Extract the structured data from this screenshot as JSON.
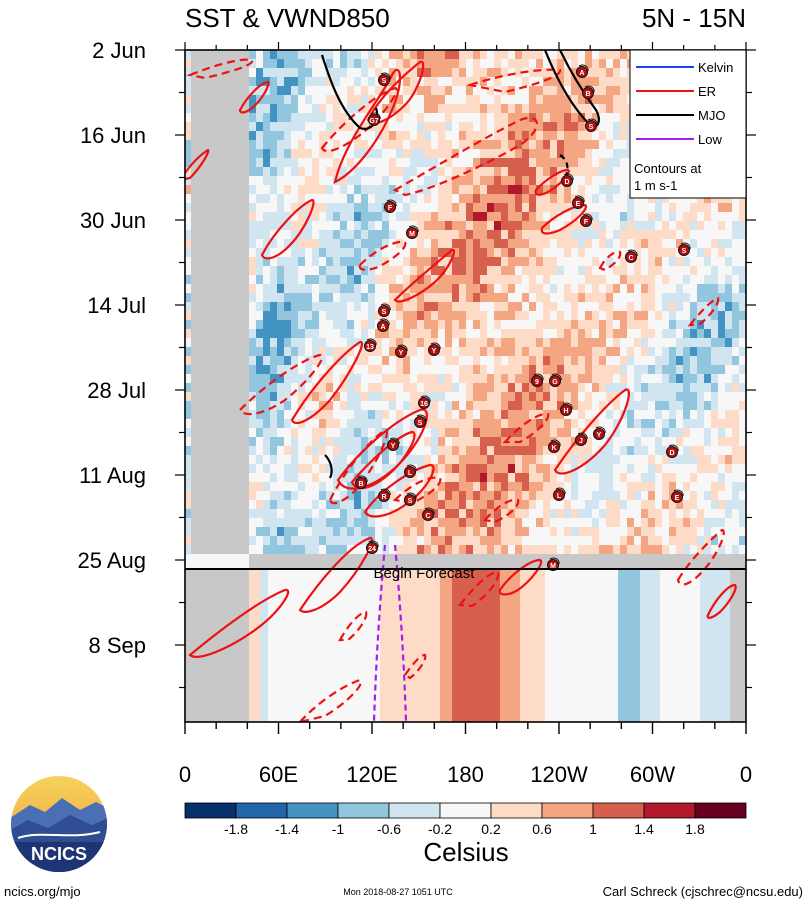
{
  "chart_data": {
    "type": "heatmap",
    "title_left": "SST & VWND850",
    "title_right": "5N - 15N",
    "x_ticks": [
      "0",
      "60E",
      "120E",
      "180",
      "120W",
      "60W",
      "0"
    ],
    "x_tick_values": [
      0,
      60,
      120,
      180,
      240,
      300,
      360
    ],
    "y_ticks": [
      "2 Jun",
      "16 Jun",
      "30 Jun",
      "14 Jul",
      "28 Jul",
      "11 Aug",
      "25 Aug",
      "8 Sep"
    ],
    "xlim": [
      0,
      360
    ],
    "forecast_label": "Begin Forecast",
    "forecast_start": "26 Aug",
    "colorbar": {
      "unit": "Celsius",
      "tick_labels": [
        "-1.8",
        "-1.4",
        "-1",
        "-0.6",
        "-0.2",
        "0.2",
        "0.6",
        "1",
        "1.4",
        "1.8"
      ],
      "colors": [
        "#08306b",
        "#2166ac",
        "#4393c3",
        "#92c5de",
        "#d1e5f0",
        "#f7f7f7",
        "#fddbc7",
        "#f4a582",
        "#d6604d",
        "#b2182b",
        "#67001f"
      ]
    },
    "legend": {
      "items": [
        {
          "label": "Kelvin",
          "color": "#1f3fff"
        },
        {
          "label": "ER",
          "color": "#ee1111"
        },
        {
          "label": "MJO",
          "color": "#000000"
        },
        {
          "label": "Low",
          "color": "#a020f0"
        }
      ],
      "note_line1": "Contours at",
      "note_line2": "1 m s-1",
      "placement": "top-right"
    },
    "storm_labels": [
      "A",
      "B",
      "G7",
      "S",
      "F",
      "M",
      "C",
      "D",
      "E",
      "13",
      "Y",
      "16",
      "9",
      "H",
      "K",
      "J",
      "L",
      "R",
      "24"
    ]
  },
  "logo": {
    "text": "NCICS"
  },
  "footer": {
    "url": "ncics.org/mjo",
    "timestamp": "Mon 2018-08-27 1051 UTC",
    "author": "Carl Schreck (cjschrec@ncsu.edu)"
  }
}
